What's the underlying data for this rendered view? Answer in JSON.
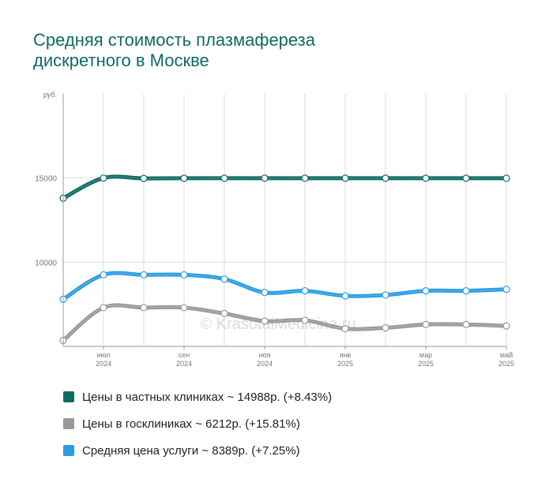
{
  "title_lines": [
    "Средняя стоимость плазмафереза",
    "дискретного в Москве"
  ],
  "watermark": "© KrasotaiMedicina.ru",
  "colors": {
    "private": "#0e6b62",
    "public": "#999999",
    "average": "#2a9de0",
    "grid": "#dddddd",
    "axis": "#999999"
  },
  "legend": [
    {
      "label": "Цены в частных клиниках ~ 14988р. (+8.43%)",
      "color": "#0e6b62"
    },
    {
      "label": "Цены в госклиниках ~ 6212р. (+15.81%)",
      "color": "#999999"
    },
    {
      "label": "Средняя цена услуги ~ 8389р. (+7.25%)",
      "color": "#2a9de0"
    }
  ],
  "chart_data": {
    "type": "line",
    "ylabel": "руб.",
    "ylim": [
      5000,
      20000
    ],
    "yticks": [
      10000,
      15000
    ],
    "ytick_labels": [
      "10000",
      "15000"
    ],
    "x": [
      "2024-06",
      "2024-07",
      "2024-08",
      "2024-09",
      "2024-10",
      "2024-11",
      "2024-12",
      "2025-01",
      "2025-02",
      "2025-03",
      "2025-04",
      "2025-05"
    ],
    "xtick_labels": [
      {
        "month": "июл",
        "year": "2024",
        "index": 1
      },
      {
        "month": "сен",
        "year": "2024",
        "index": 3
      },
      {
        "month": "ноя",
        "year": "2024",
        "index": 5
      },
      {
        "month": "янв",
        "year": "2025",
        "index": 7
      },
      {
        "month": "мар",
        "year": "2025",
        "index": 9
      },
      {
        "month": "май",
        "year": "2025",
        "index": 11
      }
    ],
    "series": [
      {
        "name": "Цены в частных клиниках",
        "key": "private",
        "values": [
          13800,
          15000,
          14980,
          14990,
          14990,
          14990,
          14990,
          14990,
          14990,
          14990,
          14990,
          14988
        ]
      },
      {
        "name": "Средняя цена услуги",
        "key": "average",
        "values": [
          7800,
          9250,
          9250,
          9250,
          9000,
          8200,
          8300,
          8000,
          8050,
          8300,
          8300,
          8389
        ]
      },
      {
        "name": "Цены в госклиниках",
        "key": "public",
        "values": [
          5350,
          7300,
          7300,
          7300,
          6950,
          6500,
          6550,
          6050,
          6100,
          6300,
          6300,
          6212
        ]
      }
    ]
  }
}
